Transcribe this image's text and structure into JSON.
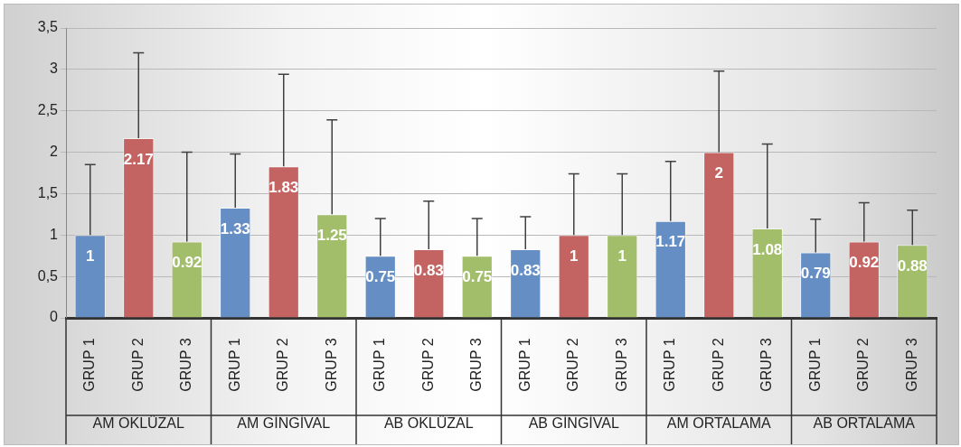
{
  "chart_data": {
    "type": "bar",
    "categories": [
      "AM OKLÜZAL",
      "AM GİNGİVAL",
      "AB OKLÜZAL",
      "AB GİNGİVAL",
      "AM ORTALAMA",
      "AB ORTALAMA"
    ],
    "series": [
      {
        "name": "GRUP 1",
        "color": "#658ec4",
        "values": [
          1,
          1.33,
          0.75,
          0.83,
          1.17,
          0.79
        ],
        "errors": [
          [
            1,
            1.85
          ],
          [
            1.33,
            1.98
          ],
          [
            0.75,
            1.2
          ],
          [
            0.83,
            1.22
          ],
          [
            1.17,
            1.89
          ],
          [
            0.79,
            1.19
          ]
        ]
      },
      {
        "name": "GRUP 2",
        "color": "#c46462",
        "values": [
          2.17,
          1.83,
          0.83,
          1,
          2,
          0.92
        ],
        "errors": [
          [
            2.17,
            3.2
          ],
          [
            1.83,
            2.94
          ],
          [
            0.83,
            1.41
          ],
          [
            1,
            1.74
          ],
          [
            2,
            2.98
          ],
          [
            0.92,
            1.39
          ]
        ]
      },
      {
        "name": "GRUP 3",
        "color": "#a3be6a",
        "values": [
          0.92,
          1.25,
          0.75,
          1,
          1.08,
          0.88
        ],
        "errors": [
          [
            0.92,
            2
          ],
          [
            1.25,
            2.39
          ],
          [
            0.75,
            1.2
          ],
          [
            1,
            1.74
          ],
          [
            1.08,
            2.1
          ],
          [
            0.88,
            1.3
          ]
        ]
      }
    ],
    "ylim": [
      0,
      3.5
    ],
    "yticks": [
      {
        "value": 0,
        "label": "0"
      },
      {
        "value": 0.5,
        "label": "0,5"
      },
      {
        "value": 1,
        "label": "1"
      },
      {
        "value": 1.5,
        "label": "1,5"
      },
      {
        "value": 2,
        "label": "2"
      },
      {
        "value": 2.5,
        "label": "2,5"
      },
      {
        "value": 3,
        "label": "3"
      },
      {
        "value": 3.5,
        "label": "3,5"
      }
    ],
    "grid": "y",
    "legend": false,
    "data_labels": true
  }
}
